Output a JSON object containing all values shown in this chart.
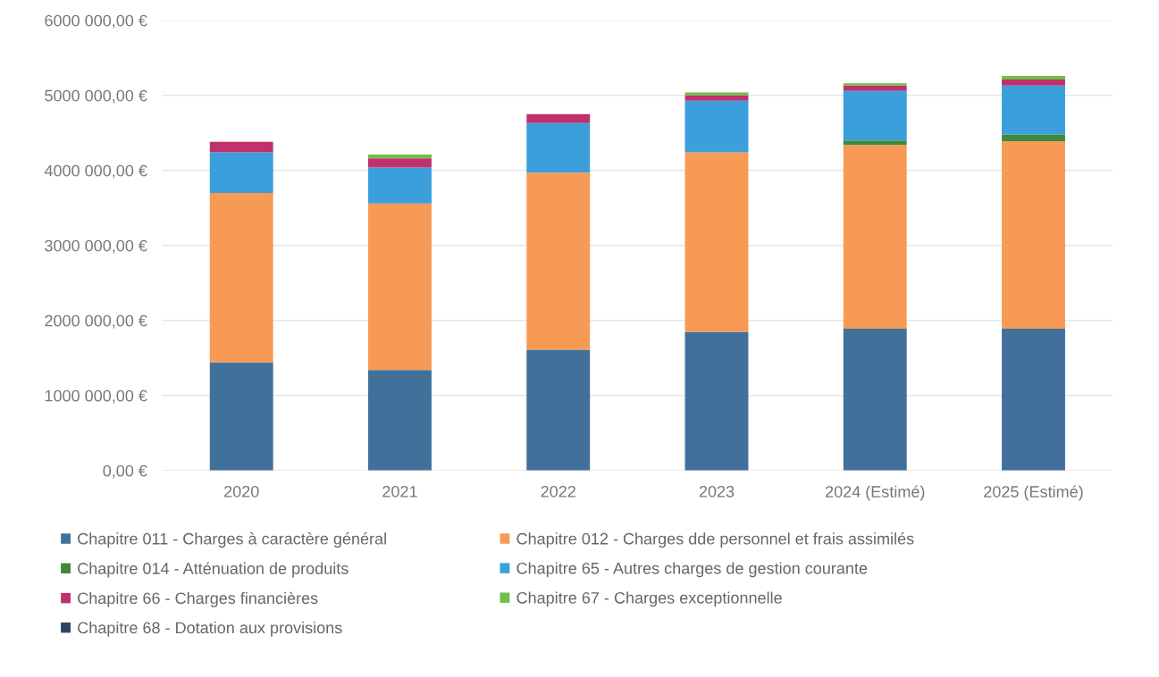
{
  "chart_data": {
    "type": "bar",
    "stacked": true,
    "categories": [
      "2020",
      "2021",
      "2022",
      "2023",
      "2024 (Estimé)",
      "2025 (Estimé)"
    ],
    "series": [
      {
        "name": "Chapitre 011 - Charges à caractère général",
        "color": "#41719a",
        "values": [
          1440000,
          1340000,
          1610000,
          1850000,
          1890000,
          1890000
        ]
      },
      {
        "name": "Chapitre 012 - Charges dde personnel et frais assimilés",
        "color": "#f79a56",
        "values": [
          2260000,
          2220000,
          2360000,
          2390000,
          2450000,
          2500000
        ]
      },
      {
        "name": "Chapitre 014 - Atténuation de produits",
        "color": "#3d8a3a",
        "values": [
          null,
          null,
          null,
          null,
          60000,
          90000
        ]
      },
      {
        "name": "Chapitre 65 - Autres charges de gestion courante",
        "color": "#3a9fdb",
        "values": [
          540000,
          480000,
          660000,
          690000,
          660000,
          650000
        ]
      },
      {
        "name": "Chapitre 66 - Charges financières",
        "color": "#c0306e",
        "values": [
          140000,
          120000,
          120000,
          70000,
          70000,
          80000
        ]
      },
      {
        "name": "Chapitre 67 - Charges exceptionnelle",
        "color": "#6fbf4a",
        "values": [
          null,
          50000,
          null,
          40000,
          30000,
          50000
        ]
      },
      {
        "name": "Chapitre 68 - Dotation aux provisions",
        "color": "#2b4660",
        "values": [
          null,
          null,
          null,
          null,
          null,
          null
        ]
      }
    ],
    "ylim": [
      0,
      6000000
    ],
    "yticks": [
      {
        "value": 0,
        "label": "0,00 €"
      },
      {
        "value": 1000000,
        "label": "1000 000,00 €"
      },
      {
        "value": 2000000,
        "label": "2000 000,00 €"
      },
      {
        "value": 3000000,
        "label": "3000 000,00 €"
      },
      {
        "value": 4000000,
        "label": "4000 000,00 €"
      },
      {
        "value": 5000000,
        "label": "5000 000,00 €"
      },
      {
        "value": 6000000,
        "label": "6000 000,00 €"
      }
    ],
    "grid": "y",
    "legend": "bottom"
  }
}
